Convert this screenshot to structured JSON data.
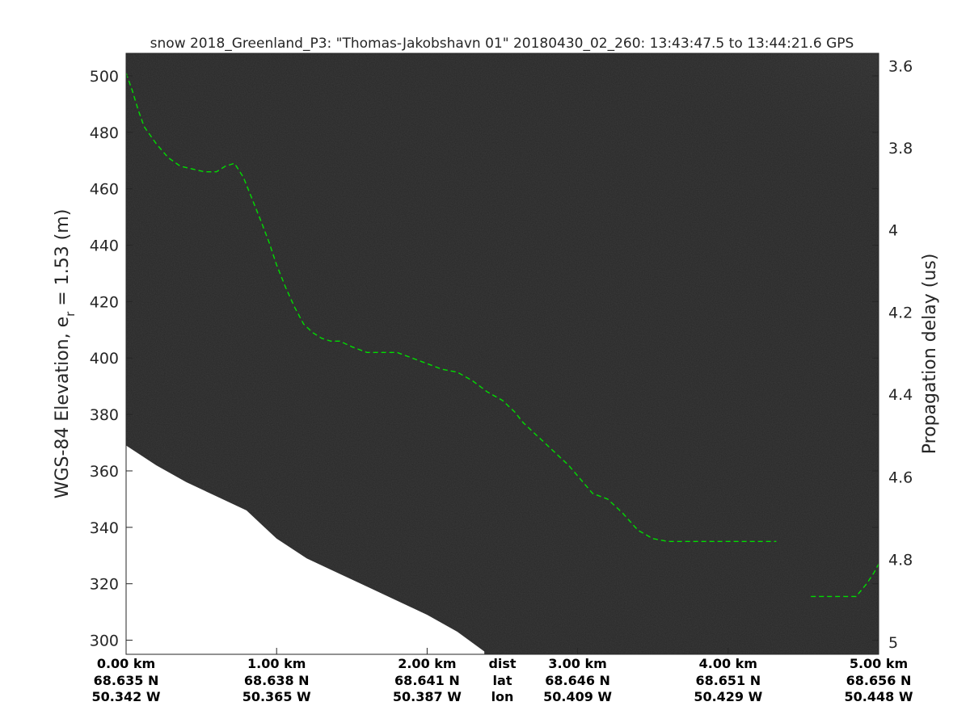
{
  "chart_data": {
    "type": "line",
    "title": "snow 2018_Greenland_P3: \"Thomas-Jakobshavn 01\"  20180430_02_260: 13:43:47.5 to 13:44:21.6 GPS",
    "ylabel_main": "WGS-84 Elevation, e",
    "ylabel_sub": "r",
    "ylabel_tail": " = 1.53 (m)",
    "y2label": "Propagation delay (us)",
    "ylim": [
      295,
      508
    ],
    "xlim": [
      0,
      5
    ],
    "y_ticks": [
      300,
      320,
      340,
      360,
      380,
      400,
      420,
      440,
      460,
      480,
      500
    ],
    "y_tick_labels": [
      "300",
      "320",
      "340",
      "360",
      "380",
      "400",
      "420",
      "440",
      "460",
      "480",
      "500"
    ],
    "y2_ticks": [
      {
        "label": "3.6",
        "y": 503.5
      },
      {
        "label": "3.8",
        "y": 474.5
      },
      {
        "label": "4",
        "y": 445.5
      },
      {
        "label": "4.2",
        "y": 416.3
      },
      {
        "label": "4.4",
        "y": 387.2
      },
      {
        "label": "4.6",
        "y": 357.9
      },
      {
        "label": "4.8",
        "y": 328.6
      },
      {
        "label": "5",
        "y": 299.3
      }
    ],
    "x_ticks": [
      {
        "x": 0.0,
        "dist": "0.00 km",
        "lat": "68.635 N",
        "lon": "50.342 W"
      },
      {
        "x": 1.0,
        "dist": "1.00 km",
        "lat": "68.638 N",
        "lon": "50.365 W"
      },
      {
        "x": 2.0,
        "dist": "2.00 km",
        "lat": "68.641 N",
        "lon": "50.387 W"
      },
      {
        "x": 3.0,
        "dist": "3.00 km",
        "lat": "68.646 N",
        "lon": "50.409 W"
      },
      {
        "x": 4.0,
        "dist": "4.00 km",
        "lat": "68.651 N",
        "lon": "50.429 W"
      },
      {
        "x": 5.0,
        "dist": "5.00 km",
        "lat": "68.656 N",
        "lon": "50.448 W"
      }
    ],
    "x_row_labels": {
      "x": 2.5,
      "dist": "dist",
      "lat": "lat",
      "lon": "lon"
    },
    "series": [
      {
        "line_color": "#00dd00",
        "segments": [
          {
            "x": [
              0.0,
              0.04,
              0.08,
              0.12,
              0.2,
              0.28,
              0.36,
              0.44,
              0.52,
              0.6,
              0.66,
              0.72,
              0.78,
              0.84,
              0.9,
              0.95,
              1.0,
              1.06,
              1.12,
              1.18,
              1.24,
              1.3,
              1.36,
              1.42,
              1.5,
              1.6,
              1.7,
              1.8,
              1.9,
              2.0,
              2.1,
              2.2,
              2.3,
              2.4,
              2.5,
              2.58,
              2.64,
              2.7,
              2.78,
              2.86,
              2.94,
              3.02,
              3.1,
              3.2,
              3.3,
              3.4,
              3.5,
              3.6,
              3.7,
              3.8,
              3.9,
              4.0,
              4.1,
              4.2,
              4.32
            ],
            "y": [
              501,
              495,
              488,
              482,
              476,
              471,
              468,
              467,
              466,
              466,
              468,
              469,
              464,
              456,
              448,
              441,
              433,
              425,
              418,
              412,
              409,
              407,
              406,
              406,
              404,
              402,
              402,
              402,
              400,
              398,
              396,
              395,
              392,
              388,
              385,
              381,
              377,
              374,
              370,
              366,
              362,
              357,
              352,
              350,
              345,
              339,
              336,
              335,
              335,
              335,
              335,
              335,
              335,
              335,
              335
            ]
          },
          {
            "x": [
              4.55,
              4.7,
              4.85,
              4.92,
              4.97,
              5.0
            ],
            "y": [
              315.5,
              315.5,
              315.5,
              320,
              324,
              327
            ]
          }
        ]
      }
    ],
    "background": {
      "echogram_fill": "#3c3c3c",
      "bright_region_fill": "#bdbdbd",
      "below_surface_fill": "#ffffff",
      "surface_bottom": {
        "x": [
          0.0,
          0.2,
          0.4,
          0.6,
          0.8,
          0.9,
          1.0,
          1.2,
          1.4,
          1.6,
          1.8,
          2.0,
          2.2,
          2.38
        ],
        "y": [
          369,
          362,
          356,
          351,
          346,
          341,
          336,
          329,
          324,
          319,
          314,
          309,
          303,
          296
        ]
      }
    }
  }
}
